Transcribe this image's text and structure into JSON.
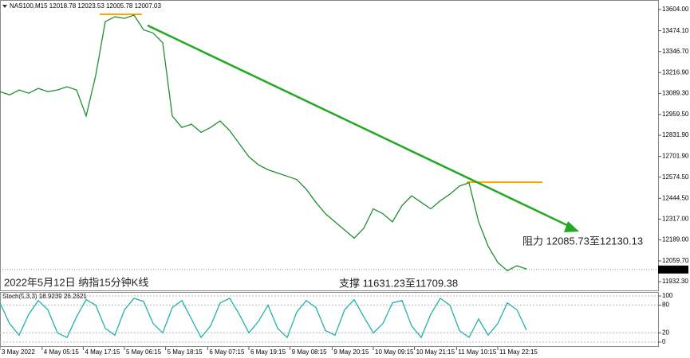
{
  "chart_data": [
    {
      "type": "line",
      "title": "NAS100,M15  12018.78 12023.53 12005.78 12007.03",
      "annotations": [
        "2022年5月12日 纳指15分钟K线",
        "阻力 12085.73至12130.13",
        "支撑 11631.23至11709.38"
      ],
      "x": [
        0,
        1,
        2,
        3,
        4,
        5,
        6,
        7,
        8,
        9,
        10,
        11,
        12,
        13,
        14,
        15,
        16,
        17,
        18,
        19,
        20,
        21,
        22,
        23,
        24,
        25,
        26,
        27,
        28,
        29,
        30,
        31,
        32,
        33,
        34,
        35,
        36,
        37,
        38,
        39,
        40,
        41,
        42,
        43,
        44,
        45,
        46,
        47,
        48,
        49,
        50,
        51,
        52,
        53,
        54,
        55
      ],
      "values": [
        13100,
        13080,
        13110,
        13090,
        13120,
        13100,
        13110,
        13130,
        13110,
        12950,
        13200,
        13530,
        13560,
        13550,
        13570,
        13480,
        13460,
        13400,
        12950,
        12880,
        12900,
        12850,
        12880,
        12920,
        12860,
        12780,
        12700,
        12650,
        12620,
        12600,
        12580,
        12560,
        12500,
        12420,
        12350,
        12300,
        12250,
        12200,
        12260,
        12380,
        12350,
        12300,
        12400,
        12460,
        12420,
        12380,
        12430,
        12470,
        12520,
        12540,
        12300,
        12150,
        12050,
        12000,
        12030,
        12010
      ],
      "color": "#1f8f2f",
      "last_price": 12007.03,
      "xlim": [
        0,
        68.75
      ],
      "xticks": [
        {
          "value": 0,
          "label": "3 May 2022"
        },
        {
          "value": 4.4,
          "label": "4 May 05:15"
        },
        {
          "value": 8.7,
          "label": "4 May 17:15"
        },
        {
          "value": 13,
          "label": "5 May 06:15"
        },
        {
          "value": 17.3,
          "label": "5 May 18:15"
        },
        {
          "value": 21.7,
          "label": "6 May 07:15"
        },
        {
          "value": 26,
          "label": "6 May 19:15"
        },
        {
          "value": 30.3,
          "label": "9 May 08:15"
        },
        {
          "value": 34.7,
          "label": "9 May 20:15"
        },
        {
          "value": 39,
          "label": "10 May 09:15"
        },
        {
          "value": 43.3,
          "label": "10 May 21:15"
        },
        {
          "value": 47.7,
          "label": "11 May 10:15"
        },
        {
          "value": 52,
          "label": "11 May 22:15"
        }
      ],
      "ylim": [
        11874,
        13663
      ],
      "yticks": [
        {
          "value": 13604,
          "label": "13604.00"
        },
        {
          "value": 13474.1,
          "label": "13474.10"
        },
        {
          "value": 13346.7,
          "label": "13346.70"
        },
        {
          "value": 13216.9,
          "label": "13216.90"
        },
        {
          "value": 13089.3,
          "label": "13089.30"
        },
        {
          "value": 12959.5,
          "label": "12959.50"
        },
        {
          "value": 12831.9,
          "label": "12831.90"
        },
        {
          "value": 12701.9,
          "label": "12701.90"
        },
        {
          "value": 12574.5,
          "label": "12574.50"
        },
        {
          "value": 12444.5,
          "label": "12444.50"
        },
        {
          "value": 12317,
          "label": "12317.00"
        },
        {
          "value": 12189,
          "label": "12189.00"
        },
        {
          "value": 12059.7,
          "label": "12059.70"
        },
        {
          "value": 11932.3,
          "label": "11932.30"
        }
      ]
    },
    {
      "type": "line",
      "title": "Stoch(5,3,3) 18.9239 26.2621",
      "x": [
        0,
        1,
        2,
        3,
        4,
        5,
        6,
        7,
        8,
        9,
        10,
        11,
        12,
        13,
        14,
        15,
        16,
        17,
        18,
        19,
        20,
        21,
        22,
        23,
        24,
        25,
        26,
        27,
        28,
        29,
        30,
        31,
        32,
        33,
        34,
        35,
        36,
        37,
        38,
        39,
        40,
        41,
        42,
        43,
        44,
        45,
        46,
        47,
        48,
        49,
        50,
        51,
        52,
        53,
        54,
        55
      ],
      "values": [
        85,
        40,
        15,
        60,
        90,
        70,
        20,
        10,
        55,
        92,
        80,
        30,
        15,
        70,
        95,
        88,
        40,
        20,
        75,
        90,
        50,
        10,
        35,
        85,
        95,
        60,
        20,
        45,
        80,
        30,
        10,
        65,
        90,
        75,
        25,
        15,
        70,
        92,
        55,
        20,
        40,
        85,
        90,
        35,
        10,
        60,
        95,
        80,
        25,
        10,
        50,
        15,
        40,
        85,
        70,
        26
      ],
      "color": "#20b2aa",
      "ylim": [
        0,
        100
      ],
      "yticks": [
        100,
        80,
        20,
        0
      ]
    }
  ]
}
